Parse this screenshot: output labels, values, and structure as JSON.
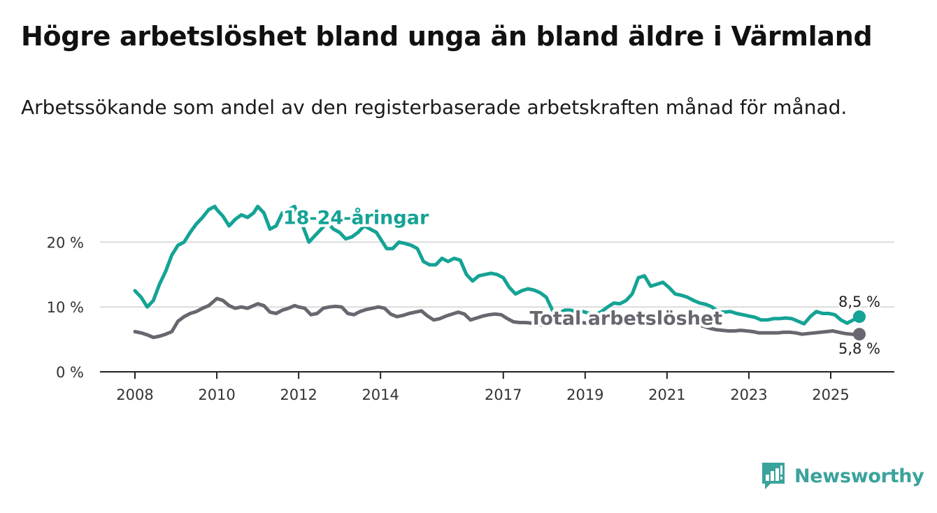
{
  "title": "Högre arbetslöshet bland unga än bland äldre i Värmland",
  "subtitle": "Arbetssökande som andel av den registerbaserade arbetskraften månad för månad.",
  "brand": {
    "name": "Newsworthy",
    "icon": "newsworthy-logo-icon"
  },
  "colors": {
    "youth": "#14a395",
    "total": "#6a6670",
    "grid": "#dcdcdc",
    "axis": "#222222",
    "brand": "#3aa39b"
  },
  "chart_data": {
    "type": "line",
    "ylim": [
      0,
      25
    ],
    "xlim": [
      2008,
      2026.7
    ],
    "y_ticks": [
      {
        "value": 0,
        "label": "0 %"
      },
      {
        "value": 10,
        "label": "10 %"
      },
      {
        "value": 20,
        "label": "20 %"
      }
    ],
    "x_ticks": [
      {
        "value": 2008,
        "label": "2008"
      },
      {
        "value": 2010,
        "label": "2010"
      },
      {
        "value": 2012,
        "label": "2012"
      },
      {
        "value": 2014,
        "label": "2014"
      },
      {
        "value": 2017,
        "label": "2017"
      },
      {
        "value": 2019,
        "label": "2019"
      },
      {
        "value": 2021,
        "label": "2021"
      },
      {
        "value": 2023,
        "label": "2023"
      },
      {
        "value": 2025,
        "label": "2025"
      }
    ],
    "series": [
      {
        "name": "18-24-åringar",
        "color": "#14a395",
        "x": [
          2008.0,
          2008.15,
          2008.3,
          2008.45,
          2008.6,
          2008.75,
          2008.9,
          2009.05,
          2009.2,
          2009.35,
          2009.5,
          2009.65,
          2009.8,
          2009.95,
          2010.0,
          2010.15,
          2010.3,
          2010.45,
          2010.6,
          2010.75,
          2010.9,
          2011.0,
          2011.15,
          2011.3,
          2011.45,
          2011.6,
          2011.75,
          2011.9,
          2012.0,
          2012.1,
          2012.25,
          2012.4,
          2012.55,
          2012.7,
          2012.85,
          2013.0,
          2013.15,
          2013.3,
          2013.45,
          2013.6,
          2013.75,
          2013.9,
          2014.0,
          2014.15,
          2014.3,
          2014.45,
          2014.6,
          2014.75,
          2014.9,
          2015.05,
          2015.2,
          2015.35,
          2015.5,
          2015.65,
          2015.8,
          2015.95,
          2016.1,
          2016.25,
          2016.4,
          2016.55,
          2016.7,
          2016.85,
          2017.0,
          2017.15,
          2017.3,
          2017.45,
          2017.6,
          2017.75,
          2017.9,
          2018.05,
          2018.2,
          2018.35,
          2018.5,
          2018.65,
          2018.8,
          2018.95,
          2019.1,
          2019.25,
          2019.4,
          2019.55,
          2019.7,
          2019.85,
          2020.0,
          2020.15,
          2020.3,
          2020.45,
          2020.6,
          2020.75,
          2020.9,
          2021.05,
          2021.2,
          2021.35,
          2021.5,
          2021.65,
          2021.8,
          2021.95,
          2022.1,
          2022.25,
          2022.4,
          2022.55,
          2022.7,
          2022.85,
          2023.0,
          2023.15,
          2023.3,
          2023.45,
          2023.6,
          2023.75,
          2023.9,
          2024.05,
          2024.2,
          2024.35,
          2024.5,
          2024.65,
          2024.8,
          2024.95,
          2025.1,
          2025.25,
          2025.4,
          2025.55,
          2025.7
        ],
        "values": [
          12.5,
          11.5,
          10.0,
          11.0,
          13.5,
          15.5,
          18.0,
          19.5,
          20.0,
          21.5,
          22.8,
          23.8,
          25.0,
          25.5,
          25.0,
          24.0,
          22.5,
          23.5,
          24.2,
          23.8,
          24.5,
          25.5,
          24.5,
          22.0,
          22.5,
          24.5,
          25.0,
          25.5,
          23.5,
          22.5,
          20.0,
          21.0,
          22.0,
          23.0,
          22.0,
          21.5,
          20.5,
          20.8,
          21.5,
          22.5,
          22.0,
          21.5,
          20.5,
          19.0,
          19.0,
          20.0,
          19.8,
          19.5,
          19.0,
          17.0,
          16.5,
          16.5,
          17.5,
          17.0,
          17.5,
          17.2,
          15.0,
          14.0,
          14.8,
          15.0,
          15.2,
          15.0,
          14.5,
          13.0,
          12.0,
          12.5,
          12.8,
          12.6,
          12.2,
          11.5,
          9.5,
          9.0,
          9.5,
          9.5,
          9.2,
          9.3,
          9.0,
          8.8,
          9.3,
          10.0,
          10.6,
          10.5,
          11.0,
          12.0,
          14.5,
          14.8,
          13.2,
          13.5,
          13.8,
          13.0,
          12.0,
          11.8,
          11.5,
          11.0,
          10.6,
          10.4,
          10.0,
          9.3,
          9.2,
          9.3,
          9.0,
          8.8,
          8.6,
          8.4,
          8.0,
          8.0,
          8.2,
          8.2,
          8.3,
          8.2,
          7.8,
          7.4,
          8.5,
          9.3,
          9.0,
          9.0,
          8.8,
          8.0,
          7.5,
          8.0,
          8.5
        ]
      },
      {
        "name": "Total arbetslöshet",
        "color": "#6a6670",
        "x": [
          2008.0,
          2008.15,
          2008.3,
          2008.45,
          2008.6,
          2008.75,
          2008.9,
          2009.05,
          2009.2,
          2009.35,
          2009.5,
          2009.65,
          2009.8,
          2009.95,
          2010.0,
          2010.15,
          2010.3,
          2010.45,
          2010.6,
          2010.75,
          2010.9,
          2011.0,
          2011.15,
          2011.3,
          2011.45,
          2011.6,
          2011.75,
          2011.9,
          2012.0,
          2012.15,
          2012.3,
          2012.45,
          2012.6,
          2012.75,
          2012.9,
          2013.05,
          2013.2,
          2013.35,
          2013.5,
          2013.65,
          2013.8,
          2013.95,
          2014.1,
          2014.25,
          2014.4,
          2014.55,
          2014.7,
          2014.85,
          2015.0,
          2015.15,
          2015.3,
          2015.45,
          2015.6,
          2015.75,
          2015.9,
          2016.05,
          2016.2,
          2016.35,
          2016.5,
          2016.65,
          2016.8,
          2016.95,
          2017.1,
          2017.25,
          2017.4,
          2017.55,
          2017.7,
          2017.85,
          2018.0,
          2018.15,
          2018.3,
          2018.45,
          2018.6,
          2018.75,
          2018.9,
          2019.05,
          2019.2,
          2019.35,
          2019.5,
          2019.65,
          2019.8,
          2019.95,
          2020.1,
          2020.25,
          2020.4,
          2020.55,
          2020.7,
          2020.85,
          2021.0,
          2021.15,
          2021.3,
          2021.45,
          2021.6,
          2021.75,
          2021.9,
          2022.05,
          2022.2,
          2022.35,
          2022.5,
          2022.65,
          2022.8,
          2022.95,
          2023.1,
          2023.25,
          2023.4,
          2023.55,
          2023.7,
          2023.85,
          2024.0,
          2024.15,
          2024.3,
          2024.45,
          2024.6,
          2024.75,
          2024.9,
          2025.05,
          2025.2,
          2025.35,
          2025.5,
          2025.7
        ],
        "values": [
          6.2,
          6.0,
          5.7,
          5.3,
          5.5,
          5.8,
          6.2,
          7.8,
          8.5,
          9.0,
          9.3,
          9.8,
          10.2,
          11.0,
          11.3,
          11.0,
          10.2,
          9.8,
          10.0,
          9.8,
          10.2,
          10.5,
          10.2,
          9.2,
          9.0,
          9.5,
          9.8,
          10.2,
          10.0,
          9.8,
          8.8,
          9.0,
          9.8,
          10.0,
          10.1,
          10.0,
          9.0,
          8.8,
          9.3,
          9.6,
          9.8,
          10.0,
          9.8,
          8.9,
          8.5,
          8.7,
          9.0,
          9.2,
          9.4,
          8.6,
          8.0,
          8.2,
          8.6,
          8.9,
          9.2,
          8.9,
          8.0,
          8.3,
          8.6,
          8.8,
          8.9,
          8.8,
          8.2,
          7.7,
          7.6,
          7.6,
          7.5,
          7.3,
          7.2,
          7.4,
          7.5,
          7.6,
          7.8,
          7.8,
          7.6,
          7.5,
          7.8,
          8.0,
          8.4,
          8.6,
          8.7,
          8.5,
          8.7,
          8.9,
          9.0,
          8.9,
          8.7,
          8.5,
          8.4,
          8.2,
          7.9,
          7.6,
          7.5,
          7.3,
          7.0,
          6.7,
          6.5,
          6.4,
          6.3,
          6.3,
          6.4,
          6.3,
          6.2,
          6.0,
          6.0,
          6.0,
          6.0,
          6.1,
          6.1,
          6.0,
          5.8,
          5.9,
          6.0,
          6.1,
          6.2,
          6.3,
          6.1,
          5.9,
          5.8,
          5.8
        ]
      }
    ],
    "series_labels": [
      {
        "text": "18-24-åringar",
        "series": 0,
        "x": 2013.4,
        "y": 22.8
      },
      {
        "text": "Total arbetslöshet",
        "series": 1,
        "x": 2020.0,
        "y": 7.3
      }
    ],
    "end_labels": [
      {
        "text": "8,5 %",
        "series": 0,
        "x": 2025.7,
        "y": 8.5,
        "placement": "above"
      },
      {
        "text": "5,8 %",
        "series": 1,
        "x": 2025.7,
        "y": 5.8,
        "placement": "below"
      }
    ]
  }
}
